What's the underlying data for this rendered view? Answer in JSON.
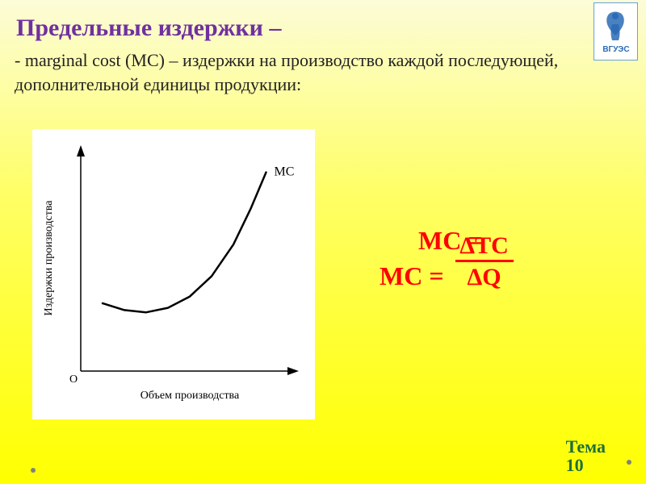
{
  "title": "Предельные издержки –",
  "subtitle": "- marginal cost (MC) – издержки на производство каждой последующей, дополнительной единицы продукции:",
  "chart": {
    "type": "line",
    "background_color": "#ffffff",
    "line_color": "#000000",
    "axis_color": "#000000",
    "label_color": "#000000",
    "xlabel": "Объем производства",
    "ylabel": "Издержки производства",
    "origin_label": "O",
    "curve_label": "MC",
    "label_fontsize": 14,
    "curve_points": [
      [
        0.1,
        0.3
      ],
      [
        0.2,
        0.27
      ],
      [
        0.3,
        0.26
      ],
      [
        0.4,
        0.28
      ],
      [
        0.5,
        0.33
      ],
      [
        0.6,
        0.42
      ],
      [
        0.7,
        0.56
      ],
      [
        0.78,
        0.72
      ],
      [
        0.85,
        0.88
      ]
    ],
    "line_width": 2.5,
    "xlim": [
      0,
      1
    ],
    "ylim": [
      0,
      1
    ]
  },
  "formula": {
    "mc_line1": "MC =",
    "lhs": "MC =",
    "numerator": "ΔTC",
    "denominator": "ΔQ",
    "color": "#ff0000",
    "font_size": 32
  },
  "footer": {
    "theme_word": "Тема",
    "theme_number": "10",
    "color": "#1f6f3e"
  },
  "logo": {
    "border_color": "#6aa0d8",
    "figure_color": "#2a6bb5",
    "text": "ВГУЭС",
    "text_color": "#2a6bb5"
  },
  "background": {
    "gradient_top": "#fcfcd8",
    "gradient_mid": "#ffff66",
    "gradient_bottom": "#ffff00"
  }
}
